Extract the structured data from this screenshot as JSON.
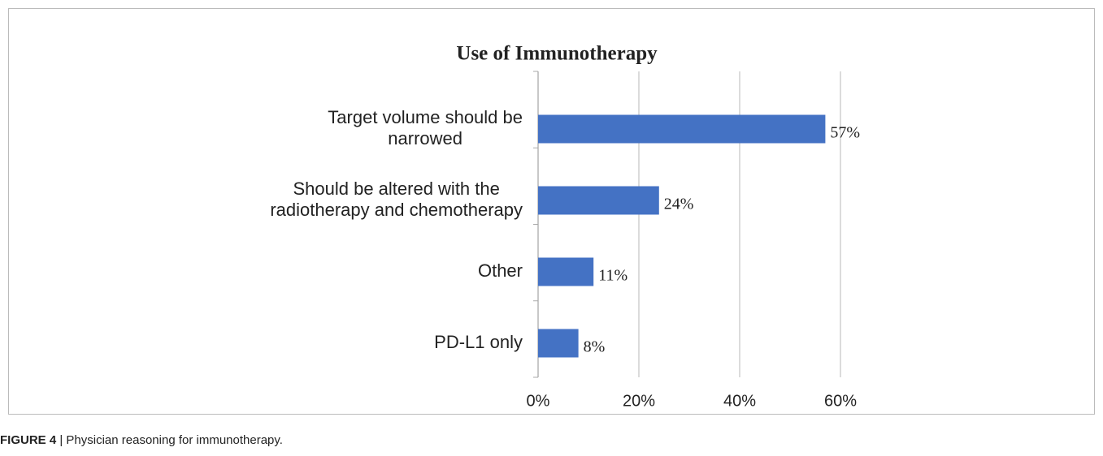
{
  "chart_data": {
    "type": "barh",
    "title": "Use of Immunotherapy",
    "categories": [
      "Target volume should be narrowed",
      "Should be altered with the radiotherapy and chemotherapy",
      "Other",
      "PD-L1 only"
    ],
    "values": [
      57,
      24,
      11,
      8
    ],
    "value_labels": [
      "57%",
      "24%",
      "11%",
      "8%"
    ],
    "color": "#4472c4",
    "xlim": [
      0,
      60
    ],
    "xticks": [
      {
        "value": 0,
        "label": "0%"
      },
      {
        "value": 20,
        "label": "20%"
      },
      {
        "value": 40,
        "label": "40%"
      },
      {
        "value": 60,
        "label": "60%"
      }
    ],
    "grid": true
  },
  "figure_label": "FIGURE 4",
  "caption": "| Physician reasoning for immunotherapy."
}
